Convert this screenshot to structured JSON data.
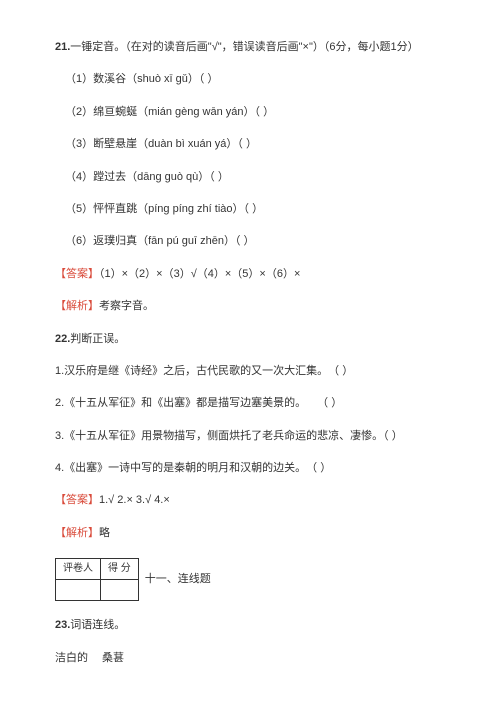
{
  "q21": {
    "num": "21.",
    "title": "一锤定音。（在对的读音后画\"√\"，错误读音后画\"×\"）（6分，每小题1分）",
    "items": [
      "（1）数溪谷（shuò xī gǔ）（ ）",
      "（2）绵亘蜿蜒（mián gèng wān yán）（ ）",
      "（3）断壁悬崖（duàn bì xuán yá）（ ）",
      "（4）蹚过去（dāng guò qù）（ ）",
      "（5）怦怦直跳（píng píng zhí tiào）（ ）",
      "（6）返璞归真（fān pú guī zhēn）（ ）"
    ],
    "ansLabel": "【答案】",
    "ans": "（1）×（2）×（3）√（4）×（5）×（6）×",
    "expLabel": "【解析】",
    "exp": "考察字音。"
  },
  "q22": {
    "num": "22.",
    "title": "判断正误。",
    "items": [
      "1.汉乐府是继《诗经》之后，古代民歌的又一次大汇集。　（ ）",
      "2.《十五从军征》和《出塞》都是描写边塞美景的。　　（ ）",
      "3.《十五从军征》用景物描写，侧面烘托了老兵命运的悲凉、凄惨。（ ）",
      "4.《出塞》一诗中写的是秦朝的明月和汉朝的边关。　（ ）"
    ],
    "ansLabel": "【答案】",
    "ans": "1.√ 2.× 3.√ 4.×",
    "expLabel": "【解析】",
    "exp": "略"
  },
  "scorer": {
    "c1": "评卷人",
    "c2": "得 分",
    "section": "十一、连线题"
  },
  "q23": {
    "num": "23.",
    "title": "词语连线。",
    "text": "洁白的　 桑葚"
  }
}
